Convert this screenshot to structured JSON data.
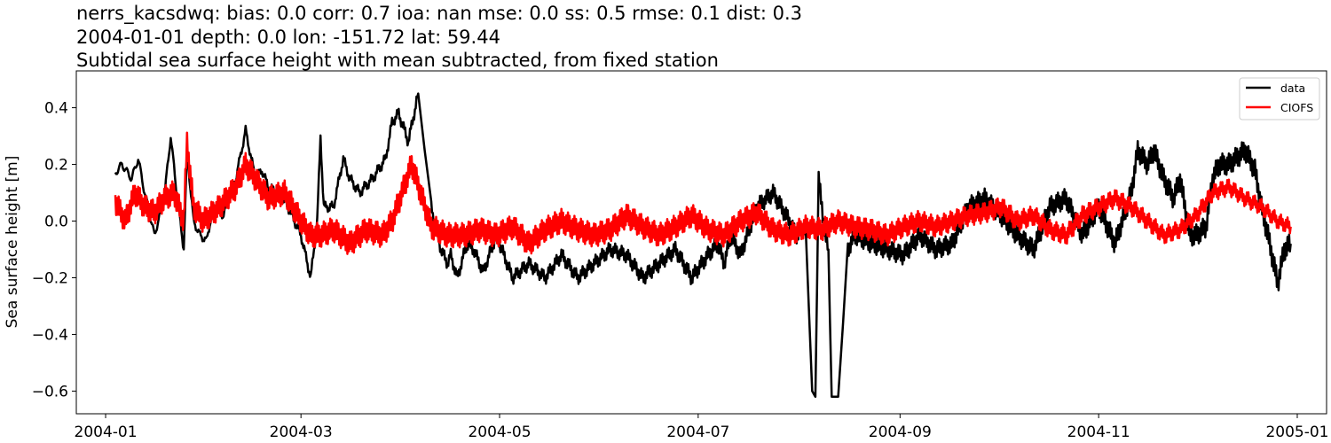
{
  "chart_data": {
    "type": "line",
    "title_lines": [
      "nerrs_kacsdwq: bias: 0.0  corr: 0.7  ioa: nan  mse: 0.0  ss: 0.5  rmse: 0.1  dist: 0.3",
      "2004-01-01 depth: 0.0 lon: -151.72 lat: 59.44",
      "Subtidal sea surface height with mean subtracted, from fixed station"
    ],
    "xlabel": "",
    "ylabel": "Sea surface height [m]",
    "x_ticks": [
      "2004-01",
      "2004-03",
      "2004-05",
      "2004-07",
      "2004-09",
      "2004-11",
      "2005-01"
    ],
    "y_ticks": [
      0.4,
      0.2,
      0.0,
      -0.2,
      -0.4,
      -0.6
    ],
    "y_tick_labels": [
      "0.4",
      "0.2",
      "0.0",
      "−0.2",
      "−0.4",
      "−0.6"
    ],
    "ylim": [
      -0.68,
      0.53
    ],
    "xlim_days": [
      -9,
      375
    ],
    "legend_position": "top-right",
    "x_unit": "days since 2004-01-01",
    "series": [
      {
        "name": "data",
        "color": "#000000",
        "x": [
          3,
          5,
          8,
          10,
          12,
          15,
          18,
          20,
          22,
          24,
          25,
          27,
          29,
          31,
          33,
          36,
          40,
          43,
          46,
          48,
          50,
          53,
          56,
          60,
          63,
          65,
          66,
          67,
          70,
          73,
          75,
          78,
          82,
          86,
          88,
          90,
          93,
          96,
          100,
          103,
          105,
          106,
          108,
          111,
          113,
          116,
          120,
          125,
          130,
          135,
          140,
          145,
          150,
          155,
          160,
          165,
          170,
          175,
          180,
          185,
          188,
          190,
          192,
          195,
          200,
          205,
          210,
          212,
          215,
          217,
          218,
          219,
          221,
          222,
          223,
          225,
          228,
          230,
          235,
          240,
          245,
          250,
          255,
          260,
          265,
          270,
          275,
          280,
          285,
          290,
          295,
          300,
          305,
          310,
          315,
          317,
          320,
          322,
          325,
          328,
          330,
          333,
          335,
          338,
          340,
          342,
          345,
          347,
          350,
          353,
          355,
          357,
          360,
          362,
          364
        ],
        "values": [
          0.17,
          0.2,
          0.15,
          0.22,
          0.1,
          -0.05,
          0.08,
          0.3,
          0.08,
          -0.1,
          0.25,
          0.0,
          -0.05,
          -0.07,
          0.05,
          0.02,
          0.15,
          0.32,
          0.15,
          0.18,
          0.12,
          0.1,
          0.05,
          -0.05,
          -0.2,
          0.0,
          0.3,
          0.05,
          0.05,
          0.22,
          0.15,
          0.1,
          0.15,
          0.22,
          0.35,
          0.38,
          0.28,
          0.45,
          0.05,
          -0.1,
          -0.15,
          -0.12,
          -0.2,
          -0.08,
          -0.1,
          -0.18,
          -0.05,
          -0.2,
          -0.15,
          -0.2,
          -0.12,
          -0.2,
          -0.15,
          -0.1,
          -0.12,
          -0.2,
          -0.15,
          -0.1,
          -0.2,
          -0.12,
          -0.08,
          -0.15,
          -0.05,
          -0.12,
          0.05,
          0.1,
          0.0,
          -0.05,
          -0.02,
          -0.6,
          -0.62,
          0.15,
          -0.05,
          -0.1,
          -0.62,
          -0.62,
          -0.1,
          -0.05,
          -0.08,
          -0.1,
          -0.12,
          -0.05,
          -0.1,
          -0.08,
          0.05,
          0.08,
          0.02,
          -0.05,
          -0.1,
          0.05,
          0.08,
          -0.05,
          0.05,
          -0.08,
          0.1,
          0.25,
          0.2,
          0.25,
          0.15,
          0.08,
          0.15,
          -0.05,
          -0.05,
          -0.02,
          0.15,
          0.2,
          0.2,
          0.22,
          0.25,
          0.18,
          0.05,
          -0.05,
          -0.22,
          -0.1,
          -0.08
        ]
      },
      {
        "name": "CIOFS",
        "color": "#ff0000",
        "x": [
          3,
          6,
          9,
          12,
          15,
          18,
          21,
          24,
          25,
          27,
          30,
          35,
          40,
          43,
          46,
          50,
          55,
          60,
          63,
          66,
          70,
          75,
          80,
          85,
          88,
          91,
          94,
          100,
          105,
          110,
          115,
          120,
          125,
          130,
          135,
          140,
          145,
          150,
          155,
          160,
          165,
          170,
          175,
          180,
          185,
          190,
          195,
          200,
          205,
          210,
          215,
          220,
          225,
          230,
          235,
          240,
          245,
          250,
          255,
          260,
          265,
          270,
          275,
          280,
          285,
          290,
          295,
          300,
          305,
          310,
          315,
          320,
          325,
          330,
          335,
          340,
          345,
          350,
          355,
          360,
          364
        ],
        "values": [
          0.07,
          0.0,
          0.1,
          0.05,
          0.03,
          0.08,
          0.1,
          0.0,
          0.28,
          0.05,
          0.0,
          0.05,
          0.12,
          0.2,
          0.15,
          0.08,
          0.1,
          0.0,
          -0.05,
          -0.05,
          -0.03,
          -0.08,
          -0.03,
          -0.05,
          0.0,
          0.1,
          0.2,
          -0.02,
          -0.05,
          -0.05,
          -0.03,
          -0.05,
          -0.02,
          -0.08,
          -0.03,
          0.0,
          -0.03,
          -0.05,
          -0.03,
          0.02,
          -0.02,
          -0.05,
          -0.02,
          0.02,
          -0.03,
          -0.05,
          0.0,
          0.03,
          -0.03,
          -0.05,
          -0.02,
          -0.03,
          0.0,
          -0.02,
          -0.03,
          -0.05,
          -0.02,
          0.0,
          -0.02,
          0.0,
          0.02,
          0.03,
          0.05,
          0.0,
          0.02,
          -0.03,
          -0.05,
          0.02,
          0.05,
          0.08,
          0.05,
          0.0,
          -0.05,
          -0.03,
          0.02,
          0.1,
          0.12,
          0.08,
          0.05,
          0.0,
          -0.02
        ]
      }
    ]
  }
}
